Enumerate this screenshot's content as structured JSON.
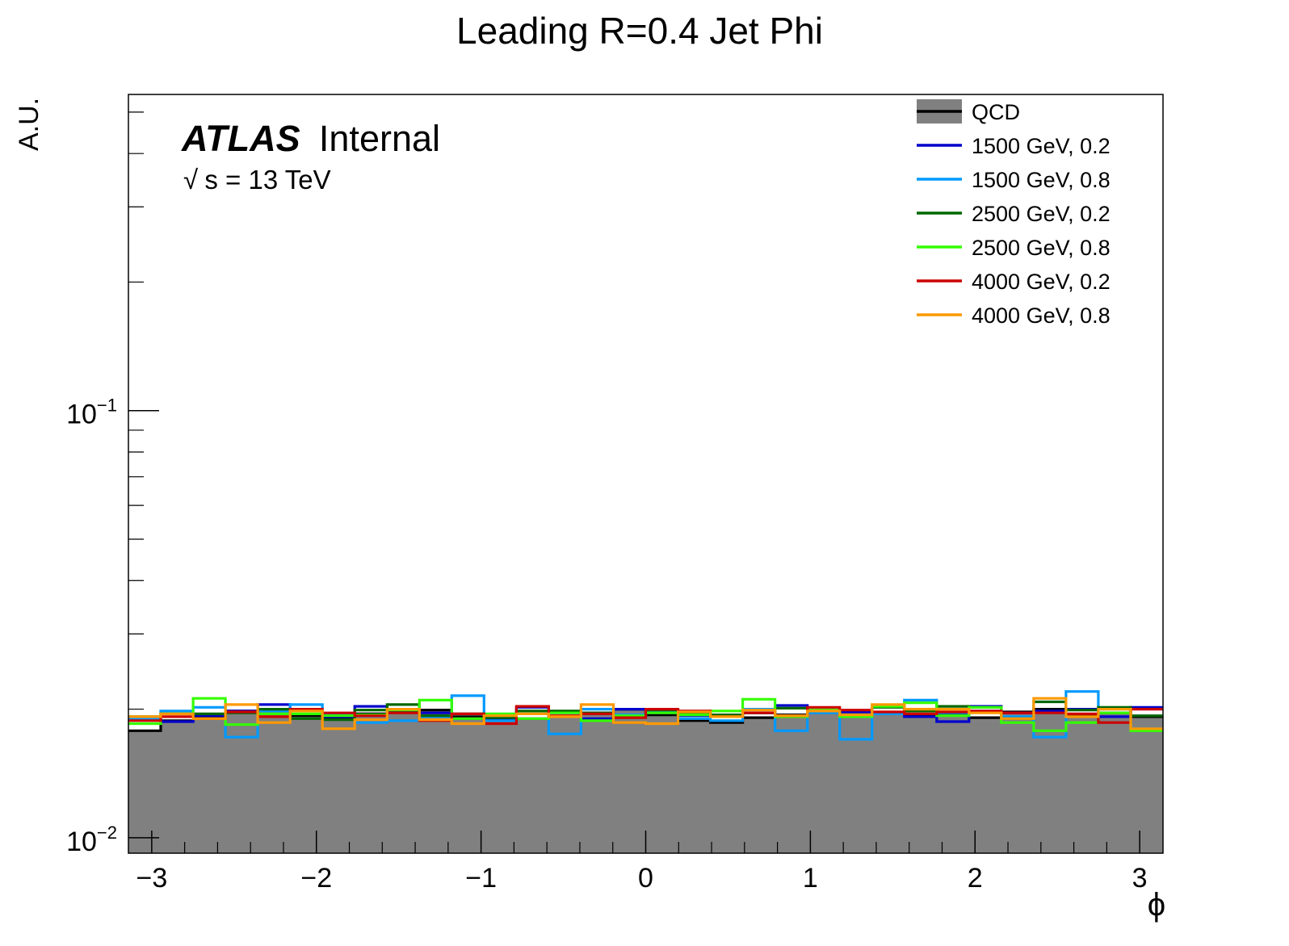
{
  "chart_data": {
    "type": "line",
    "title": "Leading R=0.4 Jet Phi",
    "xlabel": "ϕ",
    "ylabel": "A.U.",
    "xlim": [
      -3.1416,
      3.1416
    ],
    "ylim": [
      0.0092,
      0.55
    ],
    "ylog": true,
    "grid": false,
    "legend_position": "top-right",
    "x_ticks": [
      {
        "value": -3,
        "label": "−3"
      },
      {
        "value": -2,
        "label": "−2"
      },
      {
        "value": -1,
        "label": "−1"
      },
      {
        "value": 0,
        "label": "0"
      },
      {
        "value": 1,
        "label": "1"
      },
      {
        "value": 2,
        "label": "2"
      },
      {
        "value": 3,
        "label": "3"
      }
    ],
    "y_ticks": [
      {
        "value": 0.01,
        "base": "10",
        "exp": "−2"
      },
      {
        "value": 0.1,
        "base": "10",
        "exp": "−1"
      }
    ],
    "annotations": {
      "atlas": "ATLAS",
      "internal": "Internal",
      "sqrt": "√",
      "energy": "s = 13 TeV"
    },
    "bins": {
      "start": -3.1416,
      "end": 3.1416,
      "count": 32
    },
    "series": [
      {
        "name": "QCD",
        "color": "#000000",
        "fill": "#808080",
        "values": [
          0.0178,
          0.0188,
          0.0192,
          0.0198,
          0.0195,
          0.0193,
          0.019,
          0.0195,
          0.0197,
          0.0199,
          0.0192,
          0.019,
          0.019,
          0.0192,
          0.0196,
          0.02,
          0.0194,
          0.0188,
          0.0186,
          0.0191,
          0.0194,
          0.0198,
          0.0197,
          0.0196,
          0.0193,
          0.0195,
          0.0191,
          0.0197,
          0.02,
          0.0194,
          0.0196,
          0.0192
        ]
      },
      {
        "name": "1500 GeV, 0.2",
        "color": "#0000cc",
        "values": [
          0.019,
          0.0187,
          0.0193,
          0.0198,
          0.0205,
          0.0198,
          0.0192,
          0.0203,
          0.0199,
          0.0196,
          0.019,
          0.0189,
          0.0202,
          0.0196,
          0.019,
          0.02,
          0.0196,
          0.0193,
          0.0192,
          0.0196,
          0.0204,
          0.0199,
          0.0197,
          0.0195,
          0.0192,
          0.0187,
          0.0203,
          0.0196,
          0.0198,
          0.02,
          0.0192,
          0.0202
        ]
      },
      {
        "name": "1500 GeV, 0.8",
        "color": "#0099ff",
        "values": [
          0.019,
          0.0198,
          0.0202,
          0.0172,
          0.0198,
          0.0205,
          0.0195,
          0.0186,
          0.0188,
          0.0192,
          0.0215,
          0.0188,
          0.0198,
          0.0175,
          0.02,
          0.0194,
          0.0198,
          0.019,
          0.0188,
          0.02,
          0.0178,
          0.0196,
          0.017,
          0.0195,
          0.021,
          0.0196,
          0.0198,
          0.0192,
          0.0172,
          0.022,
          0.02,
          0.018
        ]
      },
      {
        "name": "2500 GeV, 0.2",
        "color": "#006600",
        "values": [
          0.0192,
          0.0195,
          0.0195,
          0.0196,
          0.02,
          0.019,
          0.0189,
          0.0199,
          0.0205,
          0.0193,
          0.0195,
          0.0191,
          0.0198,
          0.0198,
          0.0196,
          0.0192,
          0.0199,
          0.0195,
          0.0194,
          0.0196,
          0.0201,
          0.0199,
          0.0193,
          0.0202,
          0.0198,
          0.0203,
          0.0202,
          0.019,
          0.0208,
          0.0199,
          0.0202,
          0.0193
        ]
      },
      {
        "name": "2500 GeV, 0.8",
        "color": "#33ff00",
        "values": [
          0.0185,
          0.0195,
          0.0212,
          0.0184,
          0.0195,
          0.0195,
          0.0193,
          0.0194,
          0.0199,
          0.021,
          0.019,
          0.0195,
          0.019,
          0.0196,
          0.0188,
          0.0193,
          0.0196,
          0.0194,
          0.0198,
          0.0211,
          0.0192,
          0.0199,
          0.0192,
          0.0203,
          0.0207,
          0.0193,
          0.0202,
          0.0186,
          0.0178,
          0.0186,
          0.0196,
          0.0178
        ]
      },
      {
        "name": "4000 GeV, 0.2",
        "color": "#cc0000",
        "values": [
          0.0188,
          0.0192,
          0.019,
          0.0197,
          0.0192,
          0.02,
          0.0196,
          0.0193,
          0.0196,
          0.0188,
          0.0195,
          0.0185,
          0.0203,
          0.0193,
          0.0195,
          0.0191,
          0.02,
          0.0198,
          0.0192,
          0.0196,
          0.0193,
          0.0202,
          0.0199,
          0.0197,
          0.0195,
          0.0197,
          0.0198,
          0.0196,
          0.0196,
          0.0195,
          0.0186,
          0.02
        ]
      },
      {
        "name": "4000 GeV, 0.8",
        "color": "#ff9900",
        "values": [
          0.0192,
          0.0195,
          0.019,
          0.0205,
          0.0186,
          0.0198,
          0.018,
          0.0189,
          0.02,
          0.0189,
          0.0185,
          0.0193,
          0.0195,
          0.0192,
          0.0205,
          0.0186,
          0.0185,
          0.0197,
          0.0192,
          0.0199,
          0.0193,
          0.0198,
          0.0194,
          0.0205,
          0.02,
          0.02,
          0.0196,
          0.019,
          0.0212,
          0.0192,
          0.02,
          0.018
        ]
      }
    ]
  }
}
